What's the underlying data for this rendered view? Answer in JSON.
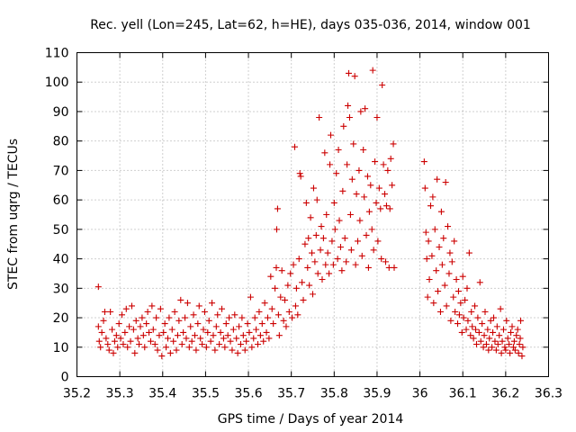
{
  "chart_data": {
    "type": "scatter",
    "title": "Rec. yell (Lon=245, Lat=62, h=HE), days 035-036, 2014, window 001",
    "xlabel": "GPS time / Days of year 2014",
    "ylabel": "STEC from uqrg / TECUs",
    "xlim": [
      35.2,
      36.3
    ],
    "ylim": [
      0,
      110
    ],
    "xticks": [
      "35.2",
      "35.3",
      "35.4",
      "35.5",
      "35.6",
      "35.7",
      "35.8",
      "35.9",
      "36",
      "36.1",
      "36.2",
      "36.3"
    ],
    "yticks": [
      "0",
      "10",
      "20",
      "30",
      "40",
      "50",
      "60",
      "70",
      "80",
      "90",
      "100",
      "110"
    ],
    "grid": true,
    "marker": "plus",
    "color": "#cc0000",
    "points": [
      [
        35.25,
        30.5
      ],
      [
        35.25,
        17.0
      ],
      [
        35.252,
        12.0
      ],
      [
        35.255,
        10.0
      ],
      [
        35.258,
        15.0
      ],
      [
        35.262,
        19.0
      ],
      [
        35.265,
        22.0
      ],
      [
        35.268,
        13.0
      ],
      [
        35.272,
        11.0
      ],
      [
        35.275,
        9.0
      ],
      [
        35.278,
        22.0
      ],
      [
        35.282,
        16.0
      ],
      [
        35.285,
        8.0
      ],
      [
        35.288,
        12.0
      ],
      [
        35.292,
        14.0
      ],
      [
        35.295,
        10.0
      ],
      [
        35.298,
        18.0
      ],
      [
        35.302,
        13.0
      ],
      [
        35.305,
        21.0
      ],
      [
        35.308,
        11.0
      ],
      [
        35.312,
        15.0
      ],
      [
        35.315,
        23.0
      ],
      [
        35.318,
        10.0
      ],
      [
        35.322,
        17.0
      ],
      [
        35.325,
        12.0
      ],
      [
        35.328,
        24.0
      ],
      [
        35.332,
        16.0
      ],
      [
        35.335,
        8.0
      ],
      [
        35.338,
        19.0
      ],
      [
        35.342,
        13.0
      ],
      [
        35.345,
        11.0
      ],
      [
        35.348,
        17.0
      ],
      [
        35.352,
        20.0
      ],
      [
        35.355,
        14.0
      ],
      [
        35.358,
        10.0
      ],
      [
        35.362,
        18.0
      ],
      [
        35.365,
        22.0
      ],
      [
        35.368,
        15.0
      ],
      [
        35.372,
        12.0
      ],
      [
        35.375,
        24.0
      ],
      [
        35.378,
        16.0
      ],
      [
        35.382,
        11.0
      ],
      [
        35.385,
        20.0
      ],
      [
        35.388,
        9.0
      ],
      [
        35.392,
        14.0
      ],
      [
        35.395,
        23.0
      ],
      [
        35.398,
        7.0
      ],
      [
        35.402,
        15.0
      ],
      [
        35.405,
        18.0
      ],
      [
        35.408,
        10.0
      ],
      [
        35.412,
        13.0
      ],
      [
        35.415,
        20.0
      ],
      [
        35.418,
        8.0
      ],
      [
        35.422,
        16.0
      ],
      [
        35.425,
        12.0
      ],
      [
        35.428,
        22.0
      ],
      [
        35.432,
        9.0
      ],
      [
        35.435,
        14.0
      ],
      [
        35.438,
        19.0
      ],
      [
        35.442,
        26.0
      ],
      [
        35.445,
        11.0
      ],
      [
        35.448,
        15.0
      ],
      [
        35.452,
        20.0
      ],
      [
        35.455,
        13.0
      ],
      [
        35.458,
        25.0
      ],
      [
        35.462,
        10.0
      ],
      [
        35.465,
        17.0
      ],
      [
        35.468,
        12.0
      ],
      [
        35.472,
        21.0
      ],
      [
        35.475,
        14.0
      ],
      [
        35.478,
        9.0
      ],
      [
        35.482,
        18.0
      ],
      [
        35.485,
        24.0
      ],
      [
        35.488,
        13.0
      ],
      [
        35.492,
        11.0
      ],
      [
        35.495,
        16.0
      ],
      [
        35.498,
        22.0
      ],
      [
        35.502,
        10.0
      ],
      [
        35.505,
        15.0
      ],
      [
        35.508,
        19.0
      ],
      [
        35.512,
        12.0
      ],
      [
        35.515,
        25.0
      ],
      [
        35.518,
        14.0
      ],
      [
        35.522,
        9.0
      ],
      [
        35.525,
        17.0
      ],
      [
        35.528,
        21.0
      ],
      [
        35.532,
        11.0
      ],
      [
        35.535,
        15.0
      ],
      [
        35.538,
        23.0
      ],
      [
        35.542,
        13.0
      ],
      [
        35.545,
        10.0
      ],
      [
        35.548,
        18.0
      ],
      [
        35.552,
        14.0
      ],
      [
        35.555,
        20.0
      ],
      [
        35.558,
        12.0
      ],
      [
        35.562,
        9.0
      ],
      [
        35.565,
        16.0
      ],
      [
        35.568,
        21.0
      ],
      [
        35.572,
        13.0
      ],
      [
        35.575,
        8.0
      ],
      [
        35.578,
        17.0
      ],
      [
        35.582,
        11.0
      ],
      [
        35.585,
        20.0
      ],
      [
        35.588,
        14.0
      ],
      [
        35.592,
        9.0
      ],
      [
        35.595,
        12.0
      ],
      [
        35.598,
        18.0
      ],
      [
        35.602,
        15.0
      ],
      [
        35.605,
        27.0
      ],
      [
        35.608,
        10.0
      ],
      [
        35.612,
        13.0
      ],
      [
        35.615,
        20.0
      ],
      [
        35.618,
        16.0
      ],
      [
        35.622,
        11.0
      ],
      [
        35.625,
        22.0
      ],
      [
        35.628,
        14.0
      ],
      [
        35.632,
        18.0
      ],
      [
        35.635,
        12.0
      ],
      [
        35.638,
        25.0
      ],
      [
        35.642,
        15.0
      ],
      [
        35.645,
        20.0
      ],
      [
        35.648,
        13.0
      ],
      [
        35.652,
        34.0
      ],
      [
        35.655,
        23.0
      ],
      [
        35.658,
        18.0
      ],
      [
        35.662,
        30.0
      ],
      [
        35.665,
        37.0
      ],
      [
        35.666,
        50.0
      ],
      [
        35.668,
        57.0
      ],
      [
        35.67,
        21.0
      ],
      [
        35.672,
        14.0
      ],
      [
        35.675,
        27.0
      ],
      [
        35.678,
        36.0
      ],
      [
        35.682,
        19.0
      ],
      [
        35.685,
        26.0
      ],
      [
        35.688,
        17.0
      ],
      [
        35.692,
        31.0
      ],
      [
        35.695,
        22.0
      ],
      [
        35.698,
        35.0
      ],
      [
        35.702,
        20.0
      ],
      [
        35.705,
        38.0
      ],
      [
        35.708,
        78.0
      ],
      [
        35.71,
        24.0
      ],
      [
        35.712,
        30.0
      ],
      [
        35.715,
        21.0
      ],
      [
        35.718,
        40.0
      ],
      [
        35.72,
        69.0
      ],
      [
        35.722,
        68.0
      ],
      [
        35.725,
        32.0
      ],
      [
        35.728,
        26.0
      ],
      [
        35.732,
        45.0
      ],
      [
        35.735,
        59.0
      ],
      [
        35.738,
        37.0
      ],
      [
        35.74,
        47.0
      ],
      [
        35.742,
        31.0
      ],
      [
        35.745,
        54.0
      ],
      [
        35.748,
        42.0
      ],
      [
        35.75,
        28.0
      ],
      [
        35.752,
        64.0
      ],
      [
        35.755,
        39.0
      ],
      [
        35.758,
        48.0
      ],
      [
        35.76,
        60.0
      ],
      [
        35.762,
        35.0
      ],
      [
        35.765,
        88.0
      ],
      [
        35.768,
        43.0
      ],
      [
        35.77,
        51.0
      ],
      [
        35.772,
        33.0
      ],
      [
        35.775,
        47.0
      ],
      [
        35.778,
        76.0
      ],
      [
        35.78,
        38.0
      ],
      [
        35.782,
        55.0
      ],
      [
        35.785,
        42.0
      ],
      [
        35.788,
        35.0
      ],
      [
        35.79,
        72.0
      ],
      [
        35.792,
        82.0
      ],
      [
        35.795,
        46.0
      ],
      [
        35.798,
        38.0
      ],
      [
        35.8,
        59.0
      ],
      [
        35.802,
        50.0
      ],
      [
        35.805,
        69.0
      ],
      [
        35.808,
        40.0
      ],
      [
        35.81,
        77.0
      ],
      [
        35.812,
        53.0
      ],
      [
        35.815,
        44.0
      ],
      [
        35.818,
        36.0
      ],
      [
        35.82,
        63.0
      ],
      [
        35.822,
        85.0
      ],
      [
        35.825,
        47.0
      ],
      [
        35.828,
        39.0
      ],
      [
        35.83,
        72.0
      ],
      [
        35.832,
        92.0
      ],
      [
        35.834,
        103.0
      ],
      [
        35.836,
        88.0
      ],
      [
        35.838,
        55.0
      ],
      [
        35.84,
        43.0
      ],
      [
        35.842,
        67.0
      ],
      [
        35.845,
        79.0
      ],
      [
        35.848,
        102.0
      ],
      [
        35.85,
        38.0
      ],
      [
        35.852,
        62.0
      ],
      [
        35.855,
        46.0
      ],
      [
        35.858,
        70.0
      ],
      [
        35.86,
        53.0
      ],
      [
        35.862,
        90.0
      ],
      [
        35.865,
        41.0
      ],
      [
        35.868,
        77.0
      ],
      [
        35.87,
        61.0
      ],
      [
        35.872,
        91.0
      ],
      [
        35.875,
        48.0
      ],
      [
        35.878,
        68.0
      ],
      [
        35.88,
        37.0
      ],
      [
        35.882,
        56.0
      ],
      [
        35.885,
        65.0
      ],
      [
        35.888,
        50.0
      ],
      [
        35.89,
        104.0
      ],
      [
        35.892,
        43.0
      ],
      [
        35.895,
        73.0
      ],
      [
        35.898,
        59.0
      ],
      [
        35.9,
        88.0
      ],
      [
        35.902,
        46.0
      ],
      [
        35.905,
        64.0
      ],
      [
        35.908,
        57.0
      ],
      [
        35.91,
        40.0
      ],
      [
        35.912,
        99.0
      ],
      [
        35.915,
        72.0
      ],
      [
        35.918,
        62.0
      ],
      [
        35.92,
        39.0
      ],
      [
        35.922,
        58.0
      ],
      [
        35.925,
        70.0
      ],
      [
        35.928,
        37.0
      ],
      [
        35.93,
        57.0
      ],
      [
        35.932,
        74.0
      ],
      [
        35.935,
        65.0
      ],
      [
        35.938,
        79.0
      ],
      [
        35.94,
        37.0
      ],
      [
        36.01,
        73.0
      ],
      [
        36.012,
        64.0
      ],
      [
        36.014,
        49.0
      ],
      [
        36.016,
        40.0
      ],
      [
        36.018,
        27.0
      ],
      [
        36.02,
        46.0
      ],
      [
        36.022,
        33.0
      ],
      [
        36.025,
        58.0
      ],
      [
        36.028,
        41.0
      ],
      [
        36.03,
        61.0
      ],
      [
        36.032,
        25.0
      ],
      [
        36.035,
        50.0
      ],
      [
        36.038,
        36.0
      ],
      [
        36.04,
        67.0
      ],
      [
        36.042,
        29.0
      ],
      [
        36.045,
        44.0
      ],
      [
        36.048,
        22.0
      ],
      [
        36.05,
        56.0
      ],
      [
        36.052,
        38.0
      ],
      [
        36.055,
        47.0
      ],
      [
        36.058,
        31.0
      ],
      [
        36.06,
        66.0
      ],
      [
        36.062,
        24.0
      ],
      [
        36.065,
        51.0
      ],
      [
        36.068,
        35.0
      ],
      [
        36.07,
        42.0
      ],
      [
        36.072,
        19.0
      ],
      [
        36.075,
        39.0
      ],
      [
        36.078,
        27.0
      ],
      [
        36.08,
        46.0
      ],
      [
        36.082,
        22.0
      ],
      [
        36.085,
        33.0
      ],
      [
        36.088,
        18.0
      ],
      [
        36.09,
        29.0
      ],
      [
        36.092,
        21.0
      ],
      [
        36.095,
        25.0
      ],
      [
        36.098,
        15.0
      ],
      [
        36.1,
        34.0
      ],
      [
        36.102,
        20.0
      ],
      [
        36.105,
        26.0
      ],
      [
        36.108,
        16.0
      ],
      [
        36.11,
        30.0
      ],
      [
        36.112,
        19.0
      ],
      [
        36.115,
        42.0
      ],
      [
        36.118,
        14.0
      ],
      [
        36.12,
        22.0
      ],
      [
        36.122,
        17.0
      ],
      [
        36.125,
        13.0
      ],
      [
        36.128,
        24.0
      ],
      [
        36.13,
        16.0
      ],
      [
        36.132,
        11.0
      ],
      [
        36.135,
        20.0
      ],
      [
        36.138,
        15.0
      ],
      [
        36.14,
        32.0
      ],
      [
        36.142,
        12.0
      ],
      [
        36.145,
        18.0
      ],
      [
        36.148,
        10.0
      ],
      [
        36.15,
        14.0
      ],
      [
        36.152,
        22.0
      ],
      [
        36.155,
        11.0
      ],
      [
        36.158,
        16.0
      ],
      [
        36.16,
        9.0
      ],
      [
        36.162,
        13.0
      ],
      [
        36.165,
        19.0
      ],
      [
        36.168,
        10.0
      ],
      [
        36.17,
        15.0
      ],
      [
        36.172,
        20.0
      ],
      [
        36.175,
        12.0
      ],
      [
        36.178,
        9.0
      ],
      [
        36.18,
        17.0
      ],
      [
        36.182,
        11.0
      ],
      [
        36.185,
        14.0
      ],
      [
        36.188,
        23.0
      ],
      [
        36.19,
        8.0
      ],
      [
        36.192,
        12.0
      ],
      [
        36.195,
        16.0
      ],
      [
        36.198,
        10.0
      ],
      [
        36.2,
        9.0
      ],
      [
        36.202,
        19.0
      ],
      [
        36.205,
        13.0
      ],
      [
        36.208,
        11.0
      ],
      [
        36.21,
        8.0
      ],
      [
        36.212,
        15.0
      ],
      [
        36.215,
        17.0
      ],
      [
        36.218,
        10.0
      ],
      [
        36.22,
        12.0
      ],
      [
        36.222,
        9.0
      ],
      [
        36.225,
        14.0
      ],
      [
        36.228,
        16.0
      ],
      [
        36.23,
        8.0
      ],
      [
        36.232,
        11.0
      ],
      [
        36.234,
        13.0
      ],
      [
        36.235,
        19.0
      ],
      [
        36.238,
        7.0
      ],
      [
        36.24,
        10.0
      ]
    ]
  }
}
